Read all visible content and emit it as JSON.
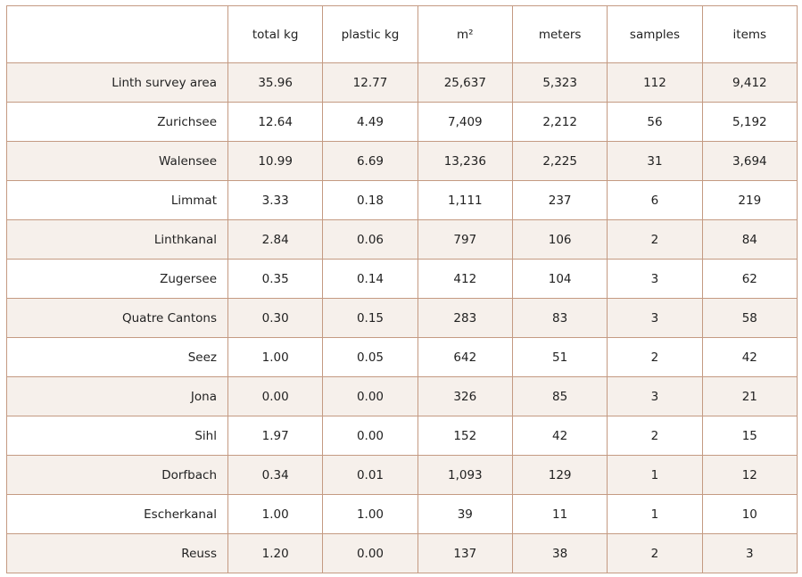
{
  "chart_data": {
    "type": "table",
    "columns": [
      "",
      "total kg",
      "plastic kg",
      "m²",
      "meters",
      "samples",
      "items"
    ],
    "rows": [
      [
        "Linth survey area",
        "35.96",
        "12.77",
        "25,637",
        "5,323",
        "112",
        "9,412"
      ],
      [
        "Zurichsee",
        "12.64",
        "4.49",
        "7,409",
        "2,212",
        "56",
        "5,192"
      ],
      [
        "Walensee",
        "10.99",
        "6.69",
        "13,236",
        "2,225",
        "31",
        "3,694"
      ],
      [
        "Limmat",
        "3.33",
        "0.18",
        "1,111",
        "237",
        "6",
        "219"
      ],
      [
        "Linthkanal",
        "2.84",
        "0.06",
        "797",
        "106",
        "2",
        "84"
      ],
      [
        "Zugersee",
        "0.35",
        "0.14",
        "412",
        "104",
        "3",
        "62"
      ],
      [
        "Quatre Cantons",
        "0.30",
        "0.15",
        "283",
        "83",
        "3",
        "58"
      ],
      [
        "Seez",
        "1.00",
        "0.05",
        "642",
        "51",
        "2",
        "42"
      ],
      [
        "Jona",
        "0.00",
        "0.00",
        "326",
        "85",
        "3",
        "21"
      ],
      [
        "Sihl",
        "1.97",
        "0.00",
        "152",
        "42",
        "2",
        "15"
      ],
      [
        "Dorfbach",
        "0.34",
        "0.01",
        "1,093",
        "129",
        "1",
        "12"
      ],
      [
        "Escherkanal",
        "1.00",
        "1.00",
        "39",
        "11",
        "1",
        "10"
      ],
      [
        "Reuss",
        "1.20",
        "0.00",
        "137",
        "38",
        "2",
        "3"
      ]
    ],
    "colors": {
      "border": "#c49a82",
      "stripe": "#f6f0eb",
      "background": "#ffffff",
      "text": "#222222"
    }
  }
}
